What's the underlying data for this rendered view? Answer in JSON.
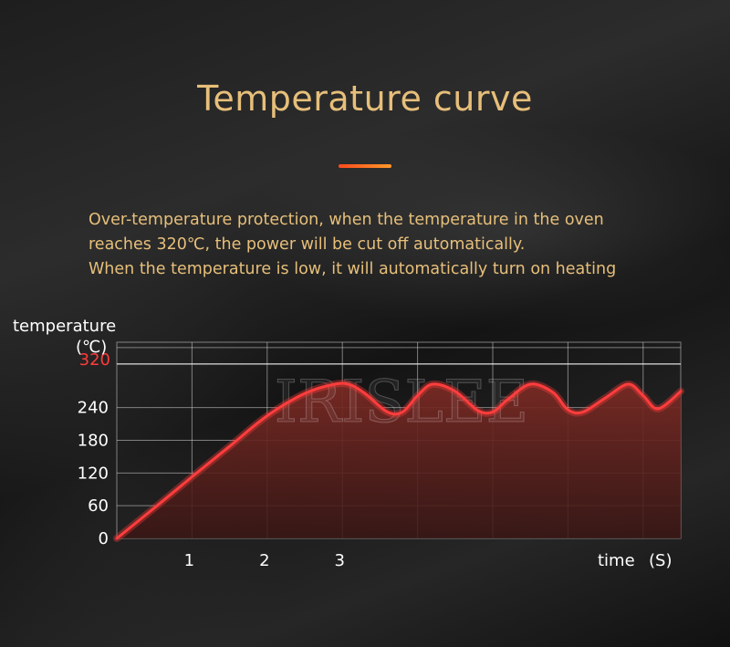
{
  "title": "Temperature curve",
  "description": [
    "Over-temperature protection, when the temperature in the oven",
    "reaches 320℃, the power will be cut off automatically.",
    "When the temperature is low, it will automatically turn on heating"
  ],
  "colors": {
    "accent_text": "#e7bf7a",
    "curve": "#ff3d3d",
    "limit_label": "#ff3b3b",
    "axis_text": "#ffffff"
  },
  "chart_data": {
    "type": "area",
    "ylabel": "temperature",
    "yunit": "(℃)",
    "xlabel": "time",
    "xunit": "(S)",
    "y_ticks": [
      0,
      60,
      120,
      180,
      240
    ],
    "y_limit": 320,
    "x_ticks": [
      1,
      2,
      3
    ],
    "ylim": [
      0,
      360
    ],
    "xlim": [
      0,
      7.5
    ],
    "grid": true,
    "watermark": "IRISLEE",
    "series": [
      {
        "x": [
          0,
          0.5,
          1,
          1.5,
          2,
          2.5,
          2.9,
          3.1,
          3.3,
          3.6,
          3.8,
          4.0,
          4.2,
          4.5,
          4.8,
          5.0,
          5.2,
          5.5,
          5.8,
          6.0,
          6.2,
          6.5,
          6.8,
          7.0,
          7.2,
          7.5
        ],
        "y": [
          0,
          56,
          113,
          169,
          225,
          266,
          283,
          282,
          266,
          232,
          232,
          262,
          283,
          270,
          235,
          232,
          255,
          283,
          268,
          236,
          232,
          258,
          283,
          262,
          238,
          270
        ]
      }
    ]
  }
}
